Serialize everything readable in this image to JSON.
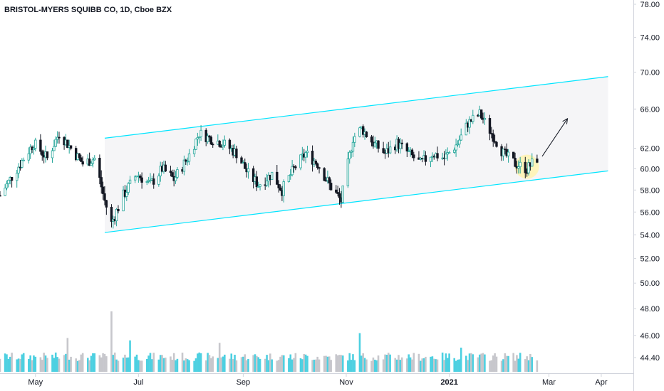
{
  "header": {
    "title": "BRISTOL-MYERS SQUIBB CO, 1D, Cboe BZX"
  },
  "colors": {
    "up": "#26a69a",
    "down": "#131722",
    "channel": "#00e5ff",
    "channel_fill": "#f5f5f7",
    "highlight": "#fff3b0",
    "volume_up": "#4dd0e1",
    "volume_down": "#c7c7cc",
    "axis_text": "#131722"
  },
  "chart_data": {
    "type": "candlestick",
    "title": "BRISTOL-MYERS SQUIBB CO, 1D, Cboe BZX",
    "y_ticks": [
      78.0,
      74.0,
      70.0,
      66.0,
      62.0,
      60.0,
      58.0,
      56.0,
      54.0,
      52.0,
      50.0,
      48.0,
      46.0,
      44.4
    ],
    "y_tick_labels": [
      "78.00",
      "74.00",
      "70.00",
      "66.00",
      "62.00",
      "60.00",
      "58.00",
      "56.00",
      "54.00",
      "52.00",
      "50.00",
      "48.00",
      "46.00",
      "44.40"
    ],
    "y_scale": "log",
    "x_ticks": [
      {
        "label": "May",
        "date": "2020-05-01"
      },
      {
        "label": "Jul",
        "date": "2020-07-01"
      },
      {
        "label": "Sep",
        "date": "2020-09-01"
      },
      {
        "label": "Nov",
        "date": "2020-11-01"
      },
      {
        "label": "2021",
        "date": "2021-01-01"
      },
      {
        "label": "Mar",
        "date": "2021-03-01"
      },
      {
        "label": "Apr",
        "date": "2021-04-01"
      }
    ],
    "x_range": [
      "2020-04-10",
      "2021-04-20"
    ],
    "price_path": [
      [
        "2020-04-10",
        57.5
      ],
      [
        "2020-04-20",
        60.0
      ],
      [
        "2020-04-30",
        62.5
      ],
      [
        "2020-05-08",
        61.0
      ],
      [
        "2020-05-15",
        63.5
      ],
      [
        "2020-05-22",
        62.0
      ],
      [
        "2020-05-29",
        60.5
      ],
      [
        "2020-06-05",
        61.0
      ],
      [
        "2020-06-11",
        57.0
      ],
      [
        "2020-06-15",
        55.0
      ],
      [
        "2020-06-22",
        57.5
      ],
      [
        "2020-06-30",
        59.5
      ],
      [
        "2020-07-08",
        58.5
      ],
      [
        "2020-07-15",
        60.0
      ],
      [
        "2020-07-22",
        59.0
      ],
      [
        "2020-07-30",
        61.0
      ],
      [
        "2020-08-06",
        63.5
      ],
      [
        "2020-08-12",
        63.0
      ],
      [
        "2020-08-20",
        62.5
      ],
      [
        "2020-08-28",
        61.5
      ],
      [
        "2020-09-04",
        59.5
      ],
      [
        "2020-09-10",
        58.5
      ],
      [
        "2020-09-18",
        59.5
      ],
      [
        "2020-09-24",
        58.0
      ],
      [
        "2020-10-01",
        60.0
      ],
      [
        "2020-10-08",
        61.5
      ],
      [
        "2020-10-15",
        60.5
      ],
      [
        "2020-10-22",
        58.5
      ],
      [
        "2020-10-29",
        57.0
      ],
      [
        "2020-11-05",
        63.0
      ],
      [
        "2020-11-10",
        64.0
      ],
      [
        "2020-11-17",
        62.5
      ],
      [
        "2020-11-24",
        61.5
      ],
      [
        "2020-12-01",
        62.5
      ],
      [
        "2020-12-08",
        61.5
      ],
      [
        "2020-12-15",
        60.5
      ],
      [
        "2020-12-22",
        61.5
      ],
      [
        "2020-12-29",
        61.0
      ],
      [
        "2021-01-06",
        62.5
      ],
      [
        "2021-01-12",
        64.5
      ],
      [
        "2021-01-19",
        65.5
      ],
      [
        "2021-01-26",
        63.5
      ],
      [
        "2021-02-02",
        61.5
      ],
      [
        "2021-02-09",
        60.5
      ],
      [
        "2021-02-16",
        60.0
      ],
      [
        "2021-02-22",
        61.0
      ]
    ],
    "volume_peaks": [
      [
        "2020-05-20",
        1.4
      ],
      [
        "2020-06-15",
        2.5
      ],
      [
        "2020-06-26",
        1.3
      ],
      [
        "2020-08-18",
        1.2
      ],
      [
        "2020-11-09",
        1.6
      ],
      [
        "2021-01-02",
        1.2
      ],
      [
        "2021-01-08",
        1.0
      ]
    ],
    "channel": {
      "upper": [
        [
          "2020-06-11",
          63.0
        ],
        [
          "2021-04-05",
          69.5
        ]
      ],
      "lower": [
        [
          "2020-06-11",
          54.2
        ],
        [
          "2021-04-05",
          59.8
        ]
      ]
    },
    "highlight_circle": {
      "date": "2021-02-16",
      "price": 60.2
    },
    "arrow": {
      "from": [
        "2021-02-25",
        61.2
      ],
      "to": [
        "2021-03-12",
        65.0
      ]
    }
  }
}
